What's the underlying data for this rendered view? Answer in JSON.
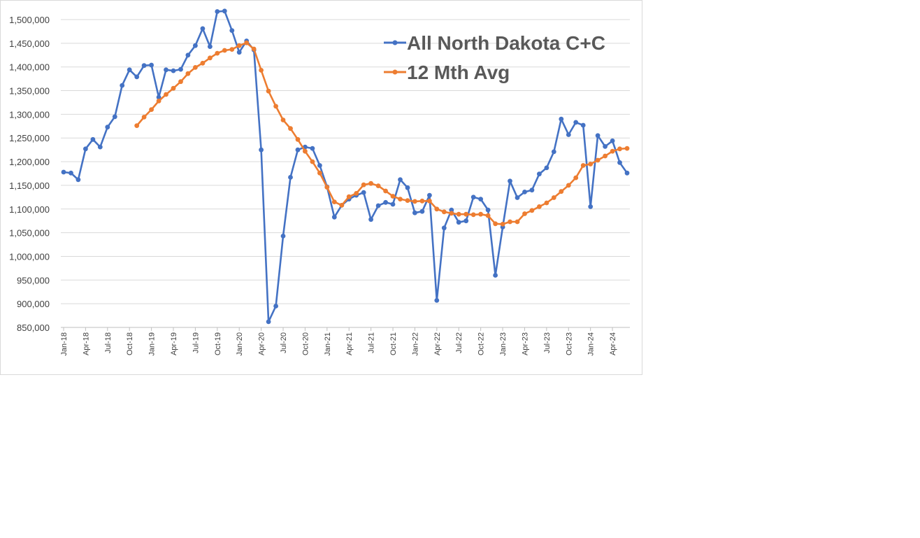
{
  "chart_data": {
    "type": "line",
    "title": "",
    "xlabel": "",
    "ylabel": "",
    "ylim": [
      850000,
      1525000
    ],
    "yticks": [
      850000,
      900000,
      950000,
      1000000,
      1050000,
      1100000,
      1150000,
      1200000,
      1250000,
      1300000,
      1350000,
      1400000,
      1450000,
      1500000
    ],
    "ytick_labels": [
      "850,000",
      "900,000",
      "950,000",
      "1,000,000",
      "1,050,000",
      "1,100,000",
      "1,150,000",
      "1,200,000",
      "1,250,000",
      "1,300,000",
      "1,350,000",
      "1,400,000",
      "1,450,000",
      "1,500,000"
    ],
    "x": [
      "Jan-18",
      "Feb-18",
      "Mar-18",
      "Apr-18",
      "May-18",
      "Jun-18",
      "Jul-18",
      "Aug-18",
      "Sep-18",
      "Oct-18",
      "Nov-18",
      "Dec-18",
      "Jan-19",
      "Feb-19",
      "Mar-19",
      "Apr-19",
      "May-19",
      "Jun-19",
      "Jul-19",
      "Aug-19",
      "Sep-19",
      "Oct-19",
      "Nov-19",
      "Dec-19",
      "Jan-20",
      "Feb-20",
      "Mar-20",
      "Apr-20",
      "May-20",
      "Jun-20",
      "Jul-20",
      "Aug-20",
      "Sep-20",
      "Oct-20",
      "Nov-20",
      "Dec-20",
      "Jan-21",
      "Feb-21",
      "Mar-21",
      "Apr-21",
      "May-21",
      "Jun-21",
      "Jul-21",
      "Aug-21",
      "Sep-21",
      "Oct-21",
      "Nov-21",
      "Dec-21",
      "Jan-22",
      "Feb-22",
      "Mar-22",
      "Apr-22",
      "May-22",
      "Jun-22",
      "Jul-22",
      "Aug-22",
      "Sep-22",
      "Oct-22",
      "Nov-22",
      "Dec-22",
      "Jan-23",
      "Feb-23",
      "Mar-23",
      "Apr-23",
      "May-23",
      "Jun-23",
      "Jul-23",
      "Aug-23",
      "Sep-23",
      "Oct-23",
      "Nov-23",
      "Dec-23",
      "Jan-24",
      "Feb-24",
      "Mar-24",
      "Apr-24",
      "May-24",
      "Jun-24"
    ],
    "xtick_labels": [
      "Jan-18",
      "Apr-18",
      "Jul-18",
      "Oct-18",
      "Jan-19",
      "Apr-19",
      "Jul-19",
      "Oct-19",
      "Jan-20",
      "Apr-20",
      "Jul-20",
      "Oct-20",
      "Jan-21",
      "Apr-21",
      "Jul-21",
      "Oct-21",
      "Jan-22",
      "Apr-22",
      "Jul-22",
      "Oct-22",
      "Jan-23",
      "Apr-23",
      "Jul-23",
      "Oct-23",
      "Jan-24",
      "Apr-24"
    ],
    "grid": "horizontal",
    "legend_position": "top-right",
    "series": [
      {
        "name": "All North Dakota C+C",
        "color": "#4472c4",
        "values": [
          1178000,
          1176000,
          1162000,
          1227000,
          1247000,
          1231000,
          1273000,
          1295000,
          1361000,
          1394000,
          1379000,
          1403000,
          1404000,
          1336000,
          1394000,
          1392000,
          1395000,
          1425000,
          1445000,
          1481000,
          1443000,
          1517000,
          1518000,
          1477000,
          1431000,
          1455000,
          1436000,
          1225000,
          862000,
          895000,
          1043000,
          1167000,
          1225000,
          1231000,
          1228000,
          1192000,
          1147000,
          1083000,
          1108000,
          1121000,
          1129000,
          1135000,
          1078000,
          1107000,
          1114000,
          1110000,
          1162000,
          1145000,
          1092000,
          1095000,
          1129000,
          907000,
          1060000,
          1098000,
          1072000,
          1075000,
          1125000,
          1121000,
          1098000,
          960000,
          1062000,
          1159000,
          1124000,
          1136000,
          1140000,
          1174000,
          1187000,
          1221000,
          1290000,
          1257000,
          1283000,
          1277000,
          1105000,
          1255000,
          1232000,
          1244000,
          1198000,
          1176000
        ]
      },
      {
        "name": "12 Mth Avg",
        "color": "#ed7d31",
        "values": [
          null,
          null,
          null,
          null,
          null,
          null,
          null,
          null,
          null,
          null,
          1276000,
          1294000,
          1310000,
          1328000,
          1342000,
          1355000,
          1369000,
          1386000,
          1399000,
          1408000,
          1419000,
          1429000,
          1435000,
          1437000,
          1445000,
          1451000,
          1438000,
          1393000,
          1349000,
          1317000,
          1288000,
          1270000,
          1247000,
          1222000,
          1200000,
          1176000,
          1146000,
          1115000,
          1108000,
          1126000,
          1133000,
          1151000,
          1154000,
          1149000,
          1138000,
          1127000,
          1121000,
          1118000,
          1116000,
          1117000,
          1117000,
          1100000,
          1094000,
          1091000,
          1089000,
          1089000,
          1088000,
          1089000,
          1086000,
          1069000,
          1068000,
          1073000,
          1073000,
          1090000,
          1097000,
          1105000,
          1113000,
          1124000,
          1137000,
          1150000,
          1166000,
          1192000,
          1195000,
          1203000,
          1212000,
          1222000,
          1227000,
          1228000
        ]
      }
    ]
  }
}
